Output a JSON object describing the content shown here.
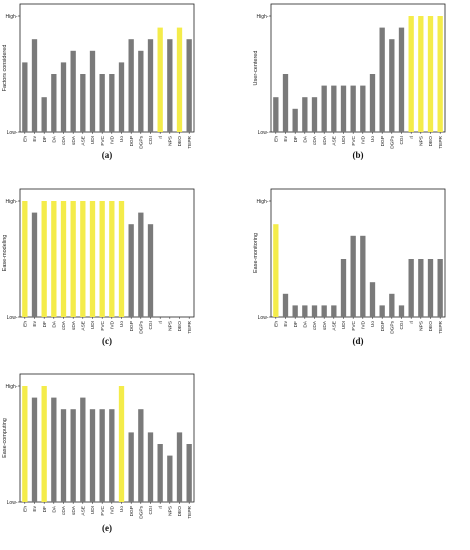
{
  "chart_data": [
    {
      "type": "bar",
      "caption": "(a)",
      "ylabel": "Factors considered",
      "ytick_labels": [
        "High",
        "Low"
      ],
      "ylim": [
        0,
        10
      ],
      "categories": [
        "Eh",
        "Ev",
        "DF",
        "DA",
        "cDA",
        "sDA",
        "ASE",
        "UDI",
        "FVC",
        "IVD",
        "Uo",
        "DGP",
        "DGPs",
        "CGI",
        "rl",
        "NPS",
        "DEO",
        "TEPR"
      ],
      "values": [
        6,
        8,
        3,
        5,
        6,
        7,
        5,
        7,
        5,
        5,
        6,
        8,
        7,
        8,
        9,
        8,
        9,
        8
      ],
      "highlighted": [
        false,
        false,
        false,
        false,
        false,
        false,
        false,
        false,
        false,
        false,
        false,
        false,
        false,
        false,
        true,
        false,
        true,
        false
      ],
      "colors": {
        "bar": "#7a7a7a",
        "highlight": "#f4ec4a"
      }
    },
    {
      "type": "bar",
      "caption": "(b)",
      "ylabel": "User-centered",
      "ytick_labels": [
        "High",
        "Low"
      ],
      "ylim": [
        0,
        10
      ],
      "categories": [
        "Eh",
        "Ev",
        "DF",
        "DA",
        "cDA",
        "sDA",
        "ASE",
        "UDI",
        "FVC",
        "IVD",
        "Uo",
        "DGP",
        "DGPs",
        "CGI",
        "rl",
        "NPS",
        "DEO",
        "TEPR"
      ],
      "values": [
        3,
        5,
        2,
        3,
        3,
        4,
        4,
        4,
        4,
        4,
        5,
        9,
        8,
        9,
        10,
        10,
        10,
        10
      ],
      "highlighted": [
        false,
        false,
        false,
        false,
        false,
        false,
        false,
        false,
        false,
        false,
        false,
        false,
        false,
        false,
        true,
        true,
        true,
        true
      ],
      "colors": {
        "bar": "#7a7a7a",
        "highlight": "#f4ec4a"
      }
    },
    {
      "type": "bar",
      "caption": "(c)",
      "ylabel": "Ease-modeling",
      "ytick_labels": [
        "High",
        "Low"
      ],
      "ylim": [
        0,
        10
      ],
      "categories": [
        "Eh",
        "Ev",
        "DF",
        "DA",
        "cDA",
        "sDA",
        "ASE",
        "UDI",
        "FVC",
        "IVD",
        "Uo",
        "DGP",
        "DGPs",
        "CGI",
        "rl",
        "NPS",
        "DEO",
        "TEPR"
      ],
      "values": [
        10,
        9,
        10,
        10,
        10,
        10,
        10,
        10,
        10,
        10,
        10,
        8,
        9,
        8,
        0,
        0,
        0,
        0
      ],
      "highlighted": [
        true,
        false,
        true,
        true,
        true,
        true,
        true,
        true,
        true,
        true,
        true,
        false,
        false,
        false,
        false,
        false,
        false,
        false
      ],
      "colors": {
        "bar": "#7a7a7a",
        "highlight": "#f4ec4a"
      }
    },
    {
      "type": "bar",
      "caption": "(d)",
      "ylabel": "Ease-monitoring",
      "ytick_labels": [
        "High",
        "Low"
      ],
      "ylim": [
        0,
        10
      ],
      "categories": [
        "Eh",
        "Ev",
        "DF",
        "DA",
        "cDA",
        "sDA",
        "ASE",
        "UDI",
        "FVC",
        "IVD",
        "Uo",
        "DGP",
        "DGPs",
        "CGI",
        "rl",
        "NPS",
        "DEO",
        "TEPR"
      ],
      "values": [
        8,
        2,
        1,
        1,
        1,
        1,
        1,
        5,
        7,
        7,
        3,
        1,
        2,
        1,
        5,
        5,
        5,
        5
      ],
      "highlighted": [
        true,
        false,
        false,
        false,
        false,
        false,
        false,
        false,
        false,
        false,
        false,
        false,
        false,
        false,
        false,
        false,
        false,
        false
      ],
      "colors": {
        "bar": "#7a7a7a",
        "highlight": "#f4ec4a"
      }
    },
    {
      "type": "bar",
      "caption": "(e)",
      "ylabel": "Ease-computing",
      "ytick_labels": [
        "High",
        "Low"
      ],
      "ylim": [
        0,
        10
      ],
      "categories": [
        "Eh",
        "Ev",
        "DF",
        "DA",
        "cDA",
        "sDA",
        "ASE",
        "UDI",
        "FVC",
        "IVD",
        "Uo",
        "DGP",
        "DGPs",
        "CGI",
        "rl",
        "NPS",
        "DEO",
        "TEPR"
      ],
      "values": [
        10,
        9,
        10,
        9,
        8,
        8,
        9,
        8,
        8,
        8,
        10,
        6,
        8,
        6,
        5,
        4,
        6,
        5
      ],
      "highlighted": [
        true,
        false,
        true,
        false,
        false,
        false,
        false,
        false,
        false,
        false,
        true,
        false,
        false,
        false,
        false,
        false,
        false,
        false
      ],
      "colors": {
        "bar": "#7a7a7a",
        "highlight": "#f4ec4a"
      }
    }
  ]
}
